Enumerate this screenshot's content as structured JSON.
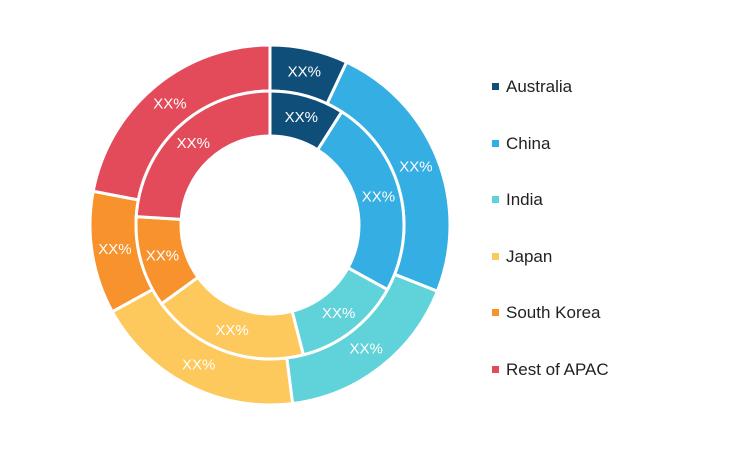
{
  "chart_data": {
    "type": "pie",
    "variant": "double-donut",
    "categories": [
      "Australia",
      "China",
      "India",
      "Japan",
      "South Korea",
      "Rest of APAC"
    ],
    "colors": [
      "#0f4e78",
      "#35aee3",
      "#5fd3d9",
      "#fdc85c",
      "#f7922d",
      "#e34b5a"
    ],
    "series": [
      {
        "ring": "outer",
        "values": [
          7,
          24,
          17,
          19,
          11,
          22
        ],
        "labels": [
          "XX%",
          "XX%",
          "XX%",
          "XX%",
          "XX%",
          "XX%"
        ]
      },
      {
        "ring": "inner",
        "values": [
          9,
          24,
          13,
          19,
          11,
          24
        ],
        "labels": [
          "XX%",
          "XX%",
          "XX%",
          "XX%",
          "XX%",
          "XX%"
        ]
      }
    ],
    "title": "",
    "legend_position": "right"
  }
}
